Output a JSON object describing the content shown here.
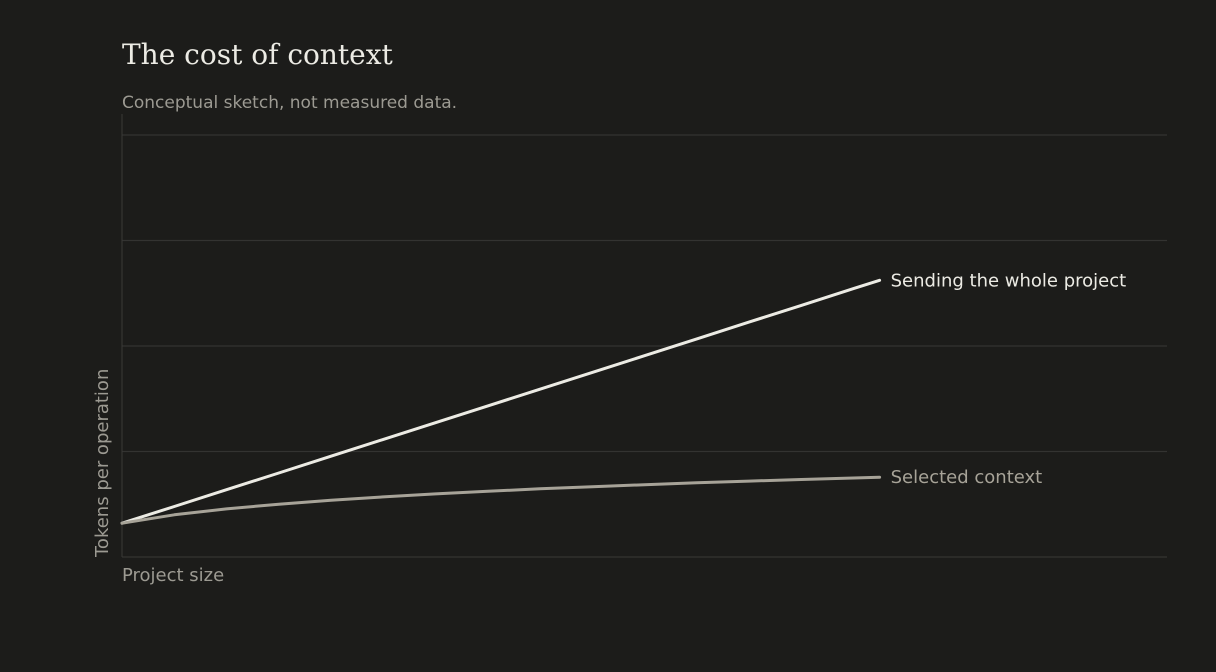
{
  "chart_data": {
    "type": "line",
    "title": "The cost of context",
    "subtitle": "Conceptual sketch, not measured data.",
    "xlabel": "Project size",
    "ylabel": "Tokens per operation",
    "xlim": [
      0,
      1
    ],
    "ylim": [
      0,
      1
    ],
    "grid": "horizontal",
    "legend": "direct labels at line ends",
    "x": [
      0,
      0.05,
      0.1,
      0.15,
      0.2,
      0.25,
      0.3,
      0.35,
      0.4,
      0.45,
      0.5,
      0.55,
      0.6,
      0.65,
      0.7,
      0.725
    ],
    "series": [
      {
        "name": "Sending the whole project",
        "color": "#ecebe4",
        "values": [
          0.08,
          0.1197,
          0.1594,
          0.1991,
          0.2388,
          0.2786,
          0.3183,
          0.358,
          0.3977,
          0.4374,
          0.4771,
          0.5168,
          0.5566,
          0.5963,
          0.636,
          0.6558
        ]
      },
      {
        "name": "Selected context",
        "color": "#a7a398",
        "values": [
          0.08,
          0.1,
          0.114,
          0.1252,
          0.1345,
          0.1425,
          0.1495,
          0.1558,
          0.1615,
          0.1666,
          0.1714,
          0.1758,
          0.1798,
          0.1837,
          0.1873,
          0.189
        ]
      }
    ]
  }
}
